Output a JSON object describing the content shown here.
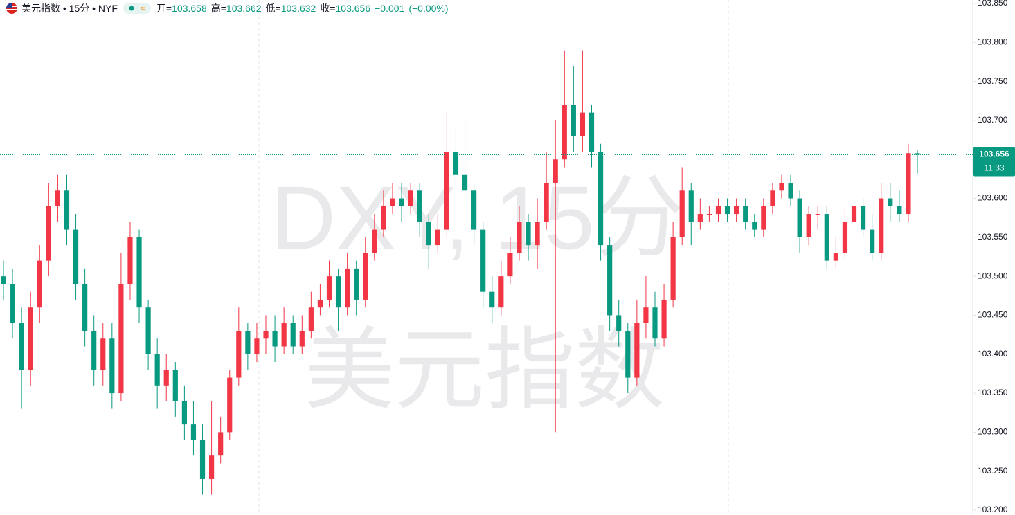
{
  "header": {
    "symbol": "美元指数 • 15分 • NYF",
    "open_label": "开=",
    "open": 103.658,
    "high_label": "高=",
    "high": 103.662,
    "low_label": "低=",
    "low": 103.632,
    "close_label": "收=",
    "close": 103.656,
    "change": "−0.001",
    "change_pct": "(−0.00%)"
  },
  "watermark": {
    "line1": "DXY, 15分",
    "line2": "美元指数"
  },
  "chart_data": {
    "type": "candlestick",
    "up_color": "#f23645",
    "down_color": "#089981",
    "ylim": [
      103.2,
      103.85
    ],
    "yticks": [
      {
        "value": 103.2,
        "label": "103.200"
      },
      {
        "value": 103.25,
        "label": "103.250"
      },
      {
        "value": 103.3,
        "label": "103.300"
      },
      {
        "value": 103.35,
        "label": "103.350"
      },
      {
        "value": 103.4,
        "label": "103.400"
      },
      {
        "value": 103.45,
        "label": "103.450"
      },
      {
        "value": 103.5,
        "label": "103.500"
      },
      {
        "value": 103.55,
        "label": "103.550"
      },
      {
        "value": 103.6,
        "label": "103.600"
      },
      {
        "value": 103.65,
        "label": "103.650"
      },
      {
        "value": 103.7,
        "label": "103.700"
      },
      {
        "value": 103.75,
        "label": "103.750"
      },
      {
        "value": 103.8,
        "label": "103.800"
      },
      {
        "value": 103.85,
        "label": "103.850"
      }
    ],
    "last_price": 103.656,
    "countdown": "11:33",
    "open": [
      103.5,
      103.49,
      103.44,
      103.38,
      103.46,
      103.52,
      103.59,
      103.61,
      103.56,
      103.49,
      103.43,
      103.38,
      103.42,
      103.35,
      103.49,
      103.55,
      103.46,
      103.4,
      103.36,
      103.38,
      103.34,
      103.31,
      103.29,
      103.24,
      103.27,
      103.3,
      103.37,
      103.43,
      103.4,
      103.42,
      103.43,
      103.41,
      103.44,
      103.41,
      103.43,
      103.46,
      103.47,
      103.5,
      103.46,
      103.51,
      103.47,
      103.53,
      103.56,
      103.59,
      103.6,
      103.59,
      103.61,
      103.57,
      103.54,
      103.56,
      103.66,
      103.63,
      103.61,
      103.56,
      103.48,
      103.46,
      103.5,
      103.53,
      103.57,
      103.54,
      103.57,
      103.62,
      103.65,
      103.72,
      103.68,
      103.71,
      103.66,
      103.54,
      103.45,
      103.43,
      103.37,
      103.44,
      103.46,
      103.42,
      103.47,
      103.55,
      103.61,
      103.57,
      103.58,
      103.58,
      103.59,
      103.58,
      103.59,
      103.57,
      103.56,
      103.59,
      103.61,
      103.62,
      103.6,
      103.55,
      103.58,
      103.58,
      103.52,
      103.53,
      103.57,
      103.59,
      103.56,
      103.53,
      103.6,
      103.59,
      103.58,
      103.658
    ],
    "high": [
      103.52,
      103.51,
      103.46,
      103.48,
      103.54,
      103.62,
      103.63,
      103.63,
      103.58,
      103.51,
      103.45,
      103.44,
      103.44,
      103.53,
      103.57,
      103.56,
      103.47,
      103.42,
      103.4,
      103.39,
      103.36,
      103.34,
      103.31,
      103.34,
      103.32,
      103.38,
      103.46,
      103.44,
      103.44,
      103.45,
      103.45,
      103.46,
      103.45,
      103.45,
      103.48,
      103.49,
      103.52,
      103.51,
      103.53,
      103.52,
      103.55,
      103.58,
      103.61,
      103.62,
      103.62,
      103.62,
      103.62,
      103.58,
      103.58,
      103.71,
      103.69,
      103.7,
      103.62,
      103.57,
      103.5,
      103.52,
      103.55,
      103.59,
      103.58,
      103.6,
      103.66,
      103.7,
      103.79,
      103.77,
      103.79,
      103.72,
      103.67,
      103.55,
      103.47,
      103.44,
      103.47,
      103.5,
      103.48,
      103.49,
      103.57,
      103.64,
      103.62,
      103.6,
      103.59,
      103.6,
      103.6,
      103.6,
      103.6,
      103.58,
      103.6,
      103.62,
      103.63,
      103.63,
      103.61,
      103.59,
      103.59,
      103.59,
      103.55,
      103.59,
      103.63,
      103.6,
      103.58,
      103.62,
      103.62,
      103.61,
      103.67,
      103.662
    ],
    "low": [
      103.47,
      103.42,
      103.33,
      103.36,
      103.44,
      103.5,
      103.57,
      103.54,
      103.47,
      103.41,
      103.36,
      103.36,
      103.33,
      103.34,
      103.47,
      103.44,
      103.38,
      103.33,
      103.34,
      103.32,
      103.29,
      103.27,
      103.22,
      103.22,
      103.26,
      103.29,
      103.36,
      103.38,
      103.39,
      103.4,
      103.39,
      103.4,
      103.4,
      103.4,
      103.42,
      103.45,
      103.46,
      103.43,
      103.45,
      103.45,
      103.46,
      103.52,
      103.55,
      103.58,
      103.57,
      103.58,
      103.55,
      103.51,
      103.53,
      103.55,
      103.61,
      103.59,
      103.54,
      103.46,
      103.44,
      103.45,
      103.49,
      103.52,
      103.52,
      103.51,
      103.56,
      103.3,
      103.64,
      103.66,
      103.66,
      103.64,
      103.52,
      103.43,
      103.41,
      103.35,
      103.36,
      103.42,
      103.41,
      103.41,
      103.46,
      103.54,
      103.54,
      103.56,
      103.57,
      103.57,
      103.57,
      103.57,
      103.56,
      103.55,
      103.55,
      103.58,
      103.6,
      103.59,
      103.53,
      103.54,
      103.56,
      103.51,
      103.51,
      103.52,
      103.56,
      103.55,
      103.52,
      103.52,
      103.57,
      103.57,
      103.57,
      103.632
    ],
    "close": [
      103.49,
      103.44,
      103.38,
      103.46,
      103.52,
      103.59,
      103.61,
      103.56,
      103.49,
      103.43,
      103.38,
      103.42,
      103.35,
      103.49,
      103.55,
      103.46,
      103.4,
      103.36,
      103.38,
      103.34,
      103.31,
      103.29,
      103.24,
      103.27,
      103.3,
      103.37,
      103.43,
      103.4,
      103.42,
      103.43,
      103.41,
      103.44,
      103.41,
      103.43,
      103.46,
      103.47,
      103.5,
      103.46,
      103.51,
      103.47,
      103.53,
      103.56,
      103.59,
      103.6,
      103.59,
      103.61,
      103.57,
      103.54,
      103.56,
      103.66,
      103.63,
      103.61,
      103.56,
      103.48,
      103.46,
      103.5,
      103.53,
      103.57,
      103.54,
      103.57,
      103.62,
      103.65,
      103.72,
      103.68,
      103.71,
      103.66,
      103.54,
      103.45,
      103.43,
      103.37,
      103.44,
      103.46,
      103.42,
      103.47,
      103.55,
      103.61,
      103.57,
      103.58,
      103.58,
      103.59,
      103.58,
      103.59,
      103.57,
      103.56,
      103.59,
      103.61,
      103.62,
      103.6,
      103.55,
      103.58,
      103.58,
      103.52,
      103.53,
      103.57,
      103.59,
      103.56,
      103.53,
      103.6,
      103.59,
      103.58,
      103.658,
      103.656
    ]
  }
}
